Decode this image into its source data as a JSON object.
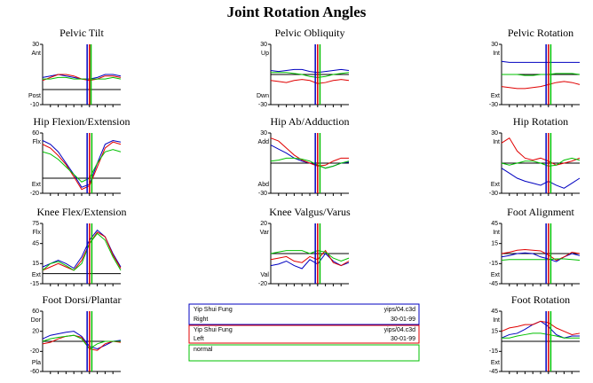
{
  "title": "Joint Rotation Angles",
  "legend": [
    {
      "name": "Yip Shui Fung",
      "file": "yips/04.c3d",
      "side": "Right",
      "date": "30-01-99"
    },
    {
      "name": "Yip Shui Fung",
      "file": "yips/04.c3d",
      "side": "Left",
      "date": "30-01-99"
    },
    {
      "name": "normal"
    }
  ],
  "chart_data": [
    {
      "type": "line",
      "title": "Pelvic Tilt",
      "top_label": "Ant",
      "bottom_label": "Post",
      "ylim": [
        -10,
        30
      ],
      "yticks": [
        -10,
        30
      ],
      "xlim": [
        0,
        100
      ],
      "x": [
        0,
        10,
        20,
        30,
        40,
        50,
        60,
        70,
        80,
        90,
        100
      ],
      "events": [
        {
          "color": "#0000c0",
          "x": 57
        },
        {
          "color": "#e00000",
          "x": 60
        },
        {
          "color": "#00c000",
          "x": 62
        }
      ],
      "series": [
        {
          "color": "#0000c0",
          "values": [
            8,
            9,
            10,
            9,
            8,
            7,
            7,
            8,
            10,
            10,
            9
          ]
        },
        {
          "color": "#e00000",
          "values": [
            6,
            8,
            10,
            10,
            9,
            7,
            6,
            7,
            9,
            9,
            8
          ]
        },
        {
          "color": "#00c000",
          "values": [
            7,
            7,
            8,
            8,
            7,
            7,
            7,
            7,
            7,
            8,
            7
          ]
        }
      ]
    },
    {
      "type": "line",
      "title": "Pelvic Obliquity",
      "top_label": "Up",
      "bottom_label": "Dwn",
      "ylim": [
        -30,
        30
      ],
      "yticks": [
        -30,
        30
      ],
      "xlim": [
        0,
        100
      ],
      "x": [
        0,
        10,
        20,
        30,
        40,
        50,
        60,
        70,
        80,
        90,
        100
      ],
      "events": [
        {
          "color": "#0000c0",
          "x": 57
        },
        {
          "color": "#e00000",
          "x": 60
        },
        {
          "color": "#00c000",
          "x": 63
        }
      ],
      "series": [
        {
          "color": "#0000c0",
          "values": [
            4,
            3,
            4,
            5,
            5,
            3,
            2,
            3,
            4,
            5,
            4
          ]
        },
        {
          "color": "#e00000",
          "values": [
            -6,
            -7,
            -8,
            -6,
            -5,
            -6,
            -9,
            -8,
            -6,
            -5,
            -6
          ]
        },
        {
          "color": "#00c000",
          "values": [
            2,
            2,
            2,
            1,
            0,
            -2,
            -3,
            -2,
            0,
            1,
            2
          ]
        }
      ]
    },
    {
      "type": "line",
      "title": "Pelvic Rotation",
      "top_label": "Int",
      "bottom_label": "Ext",
      "ylim": [
        -30,
        30
      ],
      "yticks": [
        -30,
        30
      ],
      "xlim": [
        0,
        100
      ],
      "x": [
        0,
        10,
        20,
        30,
        40,
        50,
        60,
        70,
        80,
        90,
        100
      ],
      "events": [
        {
          "color": "#0000c0",
          "x": 57
        },
        {
          "color": "#e00000",
          "x": 60
        },
        {
          "color": "#00c000",
          "x": 63
        }
      ],
      "series": [
        {
          "color": "#0000c0",
          "values": [
            13,
            12,
            12,
            12,
            12,
            12,
            12,
            12,
            12,
            12,
            12
          ]
        },
        {
          "color": "#e00000",
          "values": [
            -12,
            -13,
            -14,
            -14,
            -13,
            -12,
            -10,
            -8,
            -7,
            -8,
            -10
          ]
        },
        {
          "color": "#00c000",
          "values": [
            0,
            0,
            0,
            -1,
            -1,
            0,
            0,
            1,
            1,
            1,
            0
          ]
        }
      ]
    },
    {
      "type": "line",
      "title": "Hip Flexion/Extension",
      "top_label": "Flx",
      "bottom_label": "Ext",
      "ylim": [
        -20,
        60
      ],
      "yticks": [
        -20,
        60
      ],
      "xlim": [
        0,
        100
      ],
      "x": [
        0,
        10,
        20,
        30,
        40,
        50,
        60,
        70,
        80,
        90,
        100
      ],
      "events": [
        {
          "color": "#0000c0",
          "x": 57
        },
        {
          "color": "#e00000",
          "x": 60
        },
        {
          "color": "#00c000",
          "x": 63
        }
      ],
      "series": [
        {
          "color": "#0000c0",
          "values": [
            50,
            45,
            35,
            20,
            5,
            -12,
            -8,
            20,
            45,
            50,
            48
          ]
        },
        {
          "color": "#e00000",
          "values": [
            45,
            40,
            30,
            18,
            2,
            -15,
            -10,
            15,
            40,
            48,
            45
          ]
        },
        {
          "color": "#00c000",
          "values": [
            35,
            32,
            25,
            15,
            5,
            -5,
            0,
            20,
            35,
            38,
            35
          ]
        }
      ]
    },
    {
      "type": "line",
      "title": "Hip Ab/Adduction",
      "top_label": "Add",
      "bottom_label": "Abd",
      "ylim": [
        -30,
        30
      ],
      "yticks": [
        -30,
        30
      ],
      "xlim": [
        0,
        100
      ],
      "x": [
        0,
        10,
        20,
        30,
        40,
        50,
        60,
        70,
        80,
        90,
        100
      ],
      "events": [
        {
          "color": "#0000c0",
          "x": 57
        },
        {
          "color": "#e00000",
          "x": 60
        },
        {
          "color": "#00c000",
          "x": 63
        }
      ],
      "series": [
        {
          "color": "#0000c0",
          "values": [
            18,
            14,
            10,
            5,
            2,
            0,
            -2,
            -5,
            -3,
            0,
            1
          ]
        },
        {
          "color": "#e00000",
          "values": [
            25,
            22,
            15,
            8,
            3,
            0,
            -3,
            -2,
            2,
            5,
            5
          ]
        },
        {
          "color": "#00c000",
          "values": [
            2,
            3,
            5,
            5,
            4,
            2,
            -2,
            -5,
            -3,
            0,
            2
          ]
        }
      ]
    },
    {
      "type": "line",
      "title": "Hip Rotation",
      "top_label": "Int",
      "bottom_label": "Ext",
      "ylim": [
        -30,
        30
      ],
      "yticks": [
        -30,
        30
      ],
      "xlim": [
        0,
        100
      ],
      "x": [
        0,
        10,
        20,
        30,
        40,
        50,
        60,
        70,
        80,
        90,
        100
      ],
      "events": [
        {
          "color": "#0000c0",
          "x": 57
        },
        {
          "color": "#e00000",
          "x": 60
        },
        {
          "color": "#00c000",
          "x": 63
        }
      ],
      "series": [
        {
          "color": "#0000c0",
          "values": [
            -5,
            -10,
            -15,
            -18,
            -20,
            -22,
            -18,
            -22,
            -25,
            -20,
            -15
          ]
        },
        {
          "color": "#e00000",
          "values": [
            20,
            25,
            12,
            5,
            3,
            5,
            2,
            -2,
            0,
            2,
            5
          ]
        },
        {
          "color": "#00c000",
          "values": [
            0,
            -2,
            0,
            2,
            2,
            0,
            -3,
            -2,
            3,
            5,
            3
          ]
        }
      ]
    },
    {
      "type": "line",
      "title": "Knee Flex/Extension",
      "top_label": "Flx",
      "bottom_label": "Ext",
      "ylim": [
        -15,
        75
      ],
      "yticks": [
        -15,
        15,
        45,
        75
      ],
      "xlim": [
        0,
        100
      ],
      "x": [
        0,
        10,
        20,
        30,
        40,
        50,
        60,
        70,
        80,
        90,
        100
      ],
      "events": [
        {
          "color": "#0000c0",
          "x": 57
        },
        {
          "color": "#e00000",
          "x": 60
        },
        {
          "color": "#00c000",
          "x": 63
        }
      ],
      "series": [
        {
          "color": "#0000c0",
          "values": [
            10,
            15,
            20,
            15,
            8,
            25,
            50,
            65,
            55,
            30,
            10
          ]
        },
        {
          "color": "#e00000",
          "values": [
            5,
            10,
            15,
            10,
            5,
            20,
            45,
            62,
            55,
            28,
            8
          ]
        },
        {
          "color": "#00c000",
          "values": [
            5,
            15,
            18,
            12,
            5,
            15,
            45,
            60,
            50,
            25,
            5
          ]
        }
      ]
    },
    {
      "type": "line",
      "title": "Knee Valgus/Varus",
      "top_label": "Var",
      "bottom_label": "Val",
      "ylim": [
        -20,
        20
      ],
      "yticks": [
        -20,
        20
      ],
      "xlim": [
        0,
        100
      ],
      "x": [
        0,
        10,
        20,
        30,
        40,
        50,
        60,
        70,
        80,
        90,
        100
      ],
      "events": [
        {
          "color": "#0000c0",
          "x": 57
        },
        {
          "color": "#e00000",
          "x": 60
        },
        {
          "color": "#00c000",
          "x": 63
        }
      ],
      "series": [
        {
          "color": "#0000c0",
          "values": [
            -8,
            -7,
            -5,
            -8,
            -10,
            -4,
            -7,
            0,
            -5,
            -8,
            -6
          ]
        },
        {
          "color": "#e00000",
          "values": [
            -4,
            -3,
            -2,
            -5,
            -6,
            -2,
            -4,
            2,
            -6,
            -8,
            -5
          ]
        },
        {
          "color": "#00c000",
          "values": [
            0,
            1,
            2,
            2,
            2,
            0,
            2,
            1,
            -3,
            -5,
            -3
          ]
        }
      ]
    },
    {
      "type": "line",
      "title": "Foot Alignment",
      "top_label": "Int",
      "bottom_label": "Ext",
      "ylim": [
        -45,
        45
      ],
      "yticks": [
        -45,
        -15,
        15,
        45
      ],
      "xlim": [
        0,
        100
      ],
      "x": [
        0,
        10,
        20,
        30,
        40,
        50,
        60,
        70,
        80,
        90,
        100
      ],
      "events": [
        {
          "color": "#0000c0",
          "x": 57
        },
        {
          "color": "#e00000",
          "x": 60
        },
        {
          "color": "#00c000",
          "x": 63
        }
      ],
      "series": [
        {
          "color": "#0000c0",
          "values": [
            -5,
            -3,
            0,
            1,
            0,
            -5,
            -8,
            -12,
            -5,
            0,
            -3
          ]
        },
        {
          "color": "#e00000",
          "values": [
            0,
            2,
            5,
            6,
            5,
            4,
            -2,
            -10,
            -5,
            2,
            0
          ]
        },
        {
          "color": "#00c000",
          "values": [
            -10,
            -9,
            -9,
            -9,
            -9,
            -9,
            -9,
            -8,
            -8,
            -9,
            -10
          ]
        }
      ]
    },
    {
      "type": "line",
      "title": "Foot Dorsi/Plantar",
      "top_label": "Dor",
      "bottom_label": "Pla",
      "ylim": [
        -60,
        60
      ],
      "yticks": [
        -60,
        -20,
        20,
        60
      ],
      "xlim": [
        0,
        100
      ],
      "x": [
        0,
        10,
        20,
        30,
        40,
        50,
        60,
        70,
        80,
        90,
        100
      ],
      "events": [
        {
          "color": "#0000c0",
          "x": 57
        },
        {
          "color": "#e00000",
          "x": 60
        },
        {
          "color": "#00c000",
          "x": 63
        }
      ],
      "series": [
        {
          "color": "#0000c0",
          "values": [
            5,
            12,
            15,
            18,
            20,
            10,
            -10,
            -15,
            -8,
            0,
            2
          ]
        },
        {
          "color": "#e00000",
          "values": [
            -5,
            -2,
            5,
            10,
            12,
            8,
            -15,
            -18,
            -5,
            0,
            -2
          ]
        },
        {
          "color": "#00c000",
          "values": [
            0,
            5,
            8,
            10,
            12,
            5,
            -15,
            -5,
            0,
            0,
            0
          ]
        }
      ]
    },
    {
      "type": "line",
      "title": "Foot Rotation",
      "top_label": "Int",
      "bottom_label": "Ext",
      "ylim": [
        -45,
        45
      ],
      "yticks": [
        -45,
        -15,
        15,
        45
      ],
      "xlim": [
        0,
        100
      ],
      "x": [
        0,
        10,
        20,
        30,
        40,
        50,
        60,
        70,
        80,
        90,
        100
      ],
      "events": [
        {
          "color": "#0000c0",
          "x": 57
        },
        {
          "color": "#e00000",
          "x": 60
        },
        {
          "color": "#00c000",
          "x": 63
        }
      ],
      "series": [
        {
          "color": "#0000c0",
          "values": [
            5,
            10,
            12,
            18,
            25,
            30,
            22,
            10,
            5,
            8,
            8
          ]
        },
        {
          "color": "#e00000",
          "values": [
            15,
            20,
            22,
            25,
            25,
            30,
            28,
            20,
            15,
            10,
            12
          ]
        },
        {
          "color": "#00c000",
          "values": [
            5,
            5,
            8,
            10,
            12,
            12,
            10,
            8,
            5,
            5,
            5
          ]
        }
      ]
    }
  ]
}
